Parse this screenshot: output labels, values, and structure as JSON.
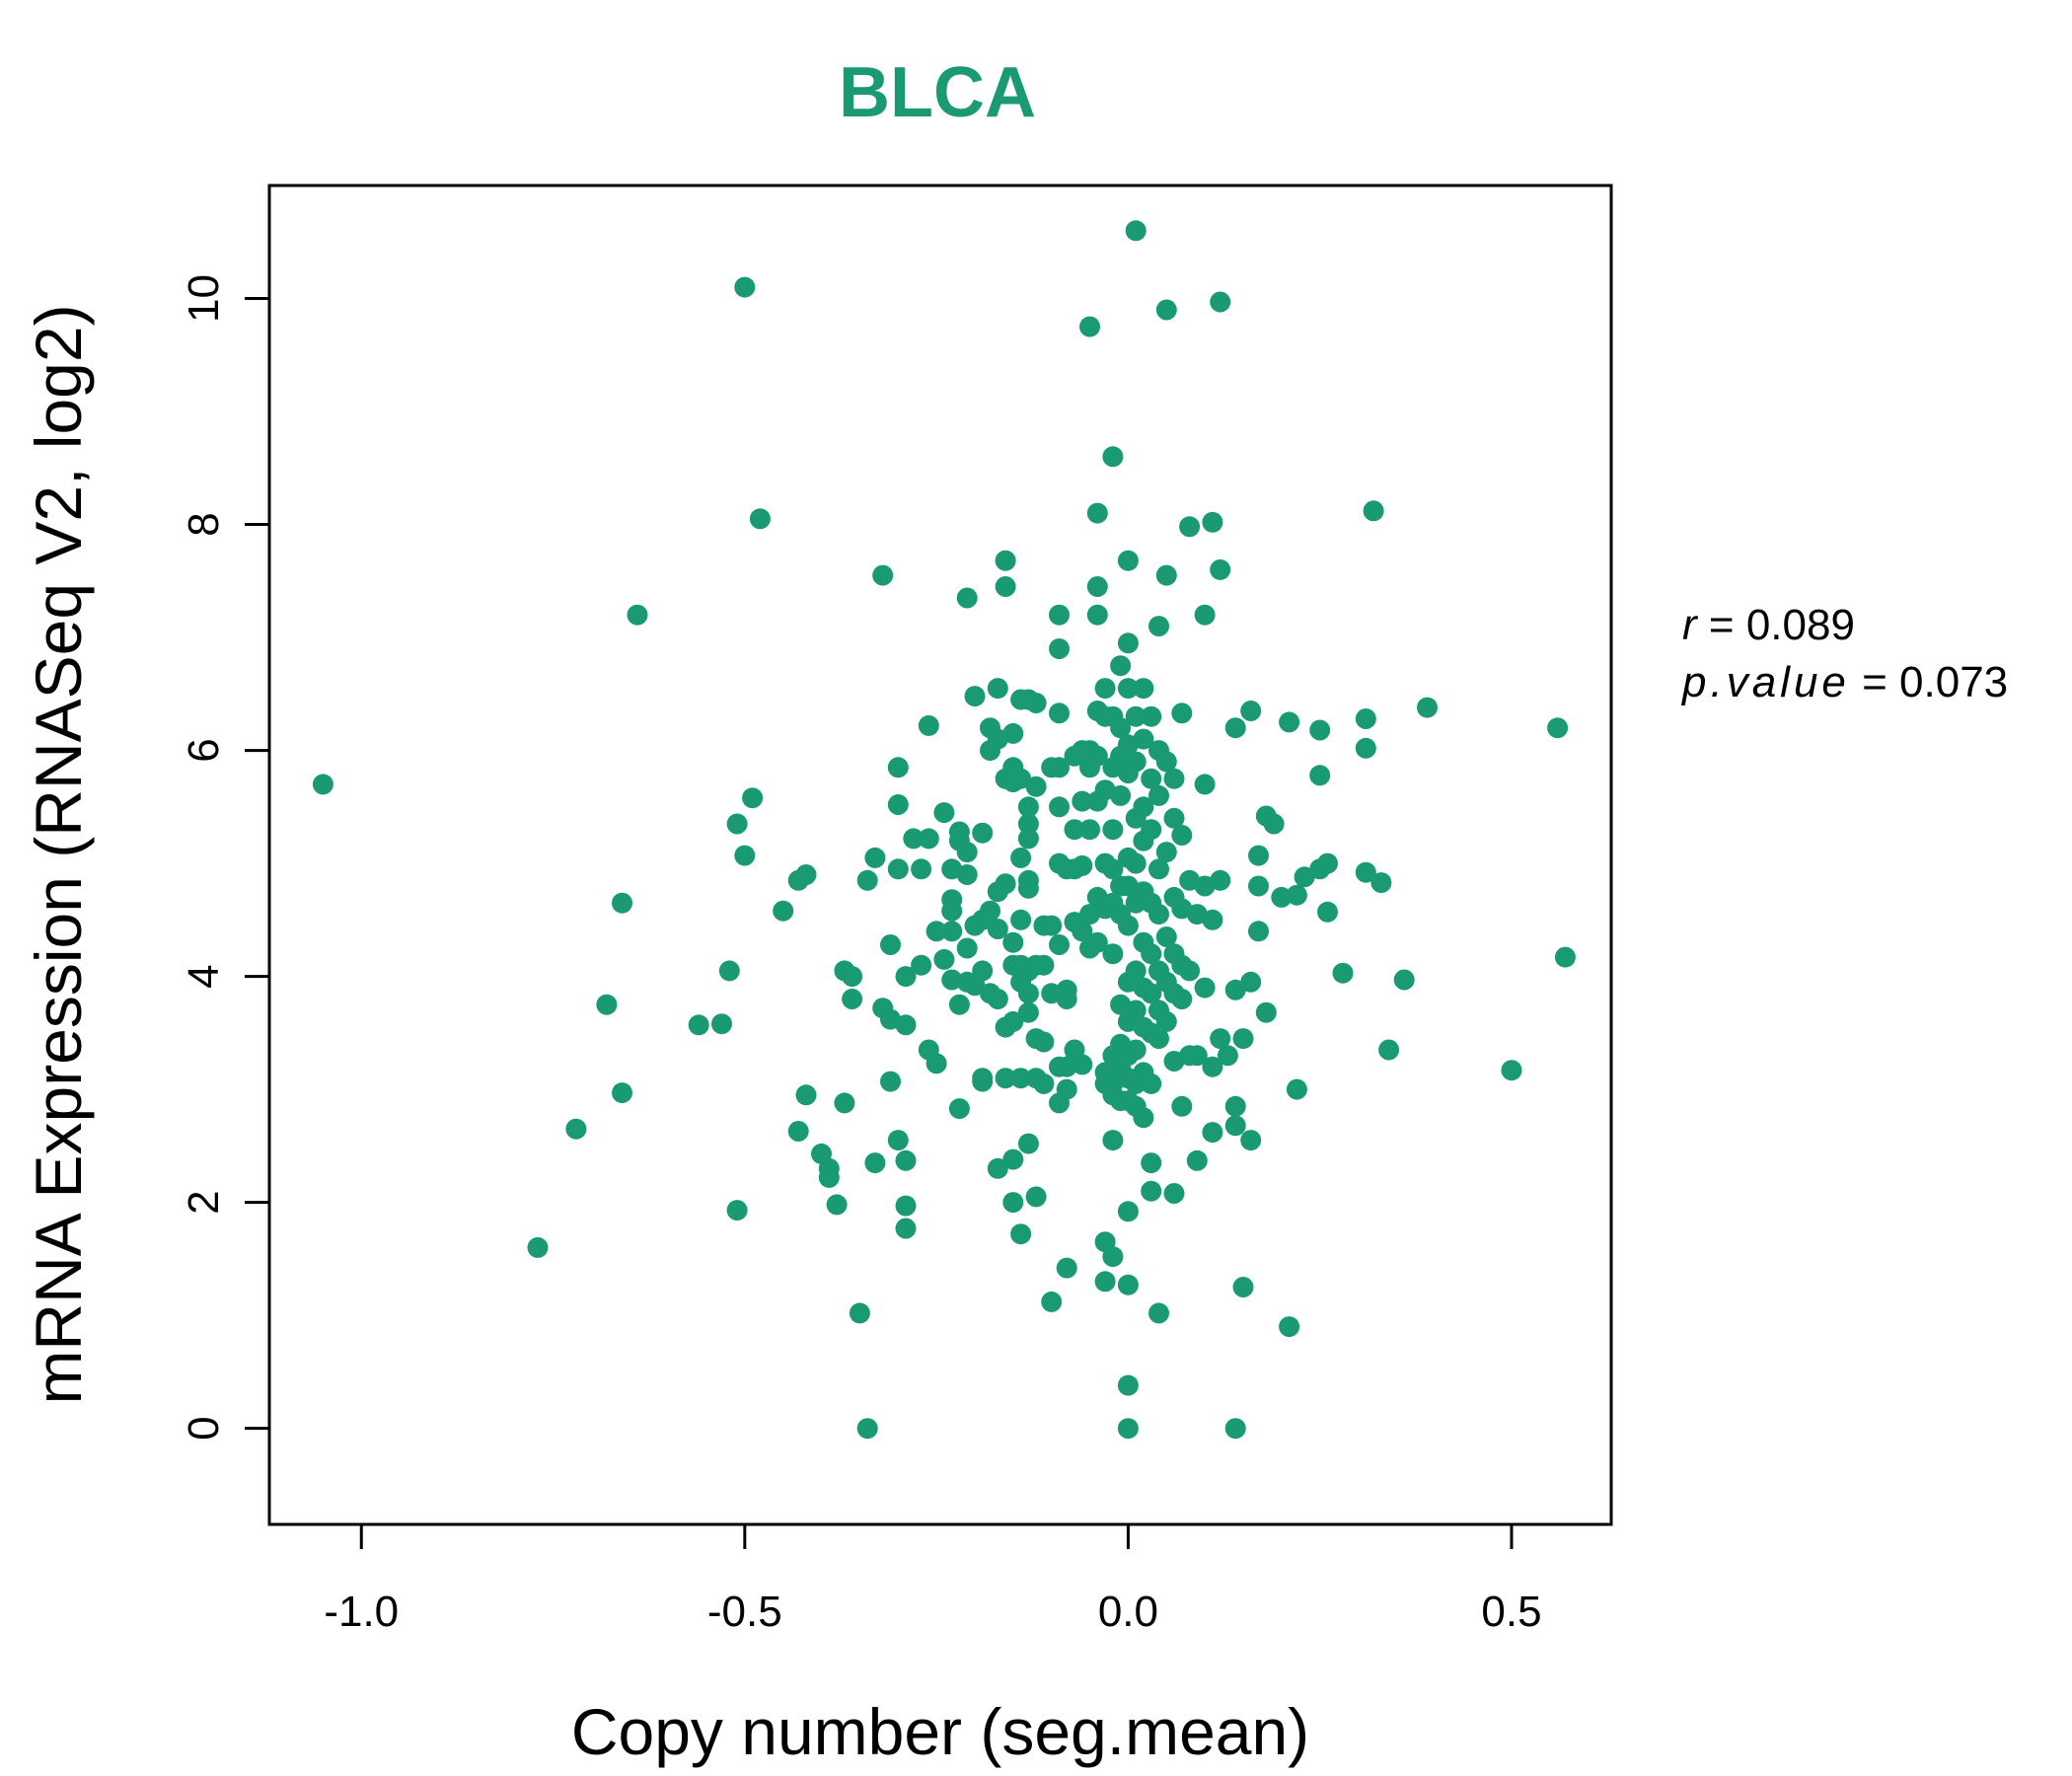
{
  "chart_data": {
    "type": "scatter",
    "title": "BLCA",
    "xlabel": "Copy number (seg.mean)",
    "ylabel": "mRNA Expression (RNASeq V2, log2)",
    "xlim": [
      -1.12,
      0.63
    ],
    "ylim": [
      -0.85,
      11.0
    ],
    "x_ticks": [
      -1.0,
      -0.5,
      0.0,
      0.5
    ],
    "x_tick_labels": [
      "-1.0",
      "-0.5",
      "0.0",
      "0.5"
    ],
    "y_ticks": [
      0,
      2,
      4,
      6,
      8,
      10
    ],
    "y_tick_labels": [
      "0",
      "2",
      "4",
      "6",
      "8",
      "10"
    ],
    "grid": false,
    "point_color": "#1a9a72",
    "stats": {
      "r_label": "r",
      "r_value": "0.089",
      "p_label": "p.value",
      "p_value": "0.073"
    },
    "points": [
      [
        -1.05,
        5.7
      ],
      [
        -0.77,
        1.6
      ],
      [
        -0.72,
        2.65
      ],
      [
        -0.68,
        3.75
      ],
      [
        -0.66,
        2.97
      ],
      [
        -0.66,
        4.65
      ],
      [
        -0.64,
        7.2
      ],
      [
        -0.56,
        3.57
      ],
      [
        -0.53,
        3.58
      ],
      [
        -0.52,
        4.05
      ],
      [
        -0.51,
        5.35
      ],
      [
        -0.51,
        1.93
      ],
      [
        -0.5,
        5.07
      ],
      [
        -0.49,
        5.58
      ],
      [
        -0.5,
        10.1
      ],
      [
        -0.48,
        8.05
      ],
      [
        -0.45,
        4.58
      ],
      [
        -0.43,
        4.85
      ],
      [
        -0.42,
        4.9
      ],
      [
        -0.43,
        2.63
      ],
      [
        -0.42,
        2.95
      ],
      [
        -0.4,
        2.43
      ],
      [
        -0.39,
        2.3
      ],
      [
        -0.39,
        2.22
      ],
      [
        -0.38,
        1.98
      ],
      [
        -0.37,
        2.88
      ],
      [
        -0.37,
        4.05
      ],
      [
        -0.36,
        4.0
      ],
      [
        -0.36,
        3.8
      ],
      [
        -0.35,
        1.02
      ],
      [
        -0.34,
        4.85
      ],
      [
        -0.34,
        0.0
      ],
      [
        -0.33,
        5.05
      ],
      [
        -0.33,
        2.35
      ],
      [
        -0.32,
        3.72
      ],
      [
        -0.32,
        7.55
      ],
      [
        -0.31,
        3.62
      ],
      [
        -0.31,
        3.07
      ],
      [
        -0.31,
        4.28
      ],
      [
        -0.3,
        5.85
      ],
      [
        -0.3,
        5.52
      ],
      [
        -0.3,
        4.95
      ],
      [
        -0.3,
        2.55
      ],
      [
        -0.29,
        3.57
      ],
      [
        -0.29,
        4.0
      ],
      [
        -0.29,
        1.77
      ],
      [
        -0.29,
        1.97
      ],
      [
        -0.29,
        2.37
      ],
      [
        -0.28,
        5.22
      ],
      [
        -0.27,
        4.1
      ],
      [
        -0.27,
        4.95
      ],
      [
        -0.26,
        6.22
      ],
      [
        -0.26,
        5.22
      ],
      [
        -0.26,
        3.35
      ],
      [
        -0.25,
        3.23
      ],
      [
        -0.25,
        4.4
      ],
      [
        -0.24,
        5.45
      ],
      [
        -0.24,
        4.15
      ],
      [
        -0.23,
        4.95
      ],
      [
        -0.23,
        3.97
      ],
      [
        -0.23,
        4.68
      ],
      [
        -0.23,
        4.58
      ],
      [
        -0.23,
        4.4
      ],
      [
        -0.22,
        3.75
      ],
      [
        -0.22,
        2.83
      ],
      [
        -0.22,
        5.28
      ],
      [
        -0.22,
        5.2
      ],
      [
        -0.21,
        7.35
      ],
      [
        -0.21,
        5.1
      ],
      [
        -0.21,
        4.9
      ],
      [
        -0.21,
        4.25
      ],
      [
        -0.21,
        3.95
      ],
      [
        -0.2,
        6.48
      ],
      [
        -0.2,
        4.45
      ],
      [
        -0.2,
        3.92
      ],
      [
        -0.19,
        5.27
      ],
      [
        -0.19,
        4.5
      ],
      [
        -0.19,
        4.05
      ],
      [
        -0.19,
        3.1
      ],
      [
        -0.19,
        3.07
      ],
      [
        -0.18,
        6.2
      ],
      [
        -0.18,
        6.0
      ],
      [
        -0.18,
        4.58
      ],
      [
        -0.18,
        3.85
      ],
      [
        -0.17,
        6.55
      ],
      [
        -0.17,
        6.1
      ],
      [
        -0.17,
        4.75
      ],
      [
        -0.17,
        4.42
      ],
      [
        -0.17,
        3.8
      ],
      [
        -0.17,
        2.3
      ],
      [
        -0.16,
        7.68
      ],
      [
        -0.16,
        7.45
      ],
      [
        -0.16,
        5.75
      ],
      [
        -0.16,
        4.82
      ],
      [
        -0.16,
        3.55
      ],
      [
        -0.16,
        3.1
      ],
      [
        -0.15,
        6.15
      ],
      [
        -0.15,
        5.85
      ],
      [
        -0.15,
        5.72
      ],
      [
        -0.15,
        4.3
      ],
      [
        -0.15,
        4.1
      ],
      [
        -0.15,
        3.6
      ],
      [
        -0.15,
        2.38
      ],
      [
        -0.15,
        2.0
      ],
      [
        -0.14,
        6.45
      ],
      [
        -0.14,
        5.75
      ],
      [
        -0.14,
        5.05
      ],
      [
        -0.14,
        4.5
      ],
      [
        -0.14,
        4.1
      ],
      [
        -0.14,
        3.95
      ],
      [
        -0.14,
        3.1
      ],
      [
        -0.14,
        1.72
      ],
      [
        -0.13,
        6.45
      ],
      [
        -0.13,
        5.5
      ],
      [
        -0.13,
        5.35
      ],
      [
        -0.13,
        5.22
      ],
      [
        -0.13,
        4.85
      ],
      [
        -0.13,
        4.78
      ],
      [
        -0.13,
        4.05
      ],
      [
        -0.13,
        3.85
      ],
      [
        -0.13,
        3.68
      ],
      [
        -0.13,
        2.52
      ],
      [
        -0.12,
        6.42
      ],
      [
        -0.12,
        5.68
      ],
      [
        -0.12,
        4.1
      ],
      [
        -0.12,
        3.45
      ],
      [
        -0.12,
        3.1
      ],
      [
        -0.12,
        2.05
      ],
      [
        -0.11,
        4.45
      ],
      [
        -0.11,
        4.1
      ],
      [
        -0.11,
        3.42
      ],
      [
        -0.11,
        3.05
      ],
      [
        -0.1,
        5.85
      ],
      [
        -0.1,
        4.45
      ],
      [
        -0.1,
        3.85
      ],
      [
        -0.1,
        1.12
      ],
      [
        -0.09,
        7.2
      ],
      [
        -0.09,
        6.9
      ],
      [
        -0.09,
        6.33
      ],
      [
        -0.09,
        5.85
      ],
      [
        -0.09,
        5.5
      ],
      [
        -0.09,
        5.0
      ],
      [
        -0.09,
        4.28
      ],
      [
        -0.09,
        3.2
      ],
      [
        -0.09,
        2.88
      ],
      [
        -0.08,
        4.95
      ],
      [
        -0.08,
        3.88
      ],
      [
        -0.08,
        3.8
      ],
      [
        -0.08,
        3.2
      ],
      [
        -0.08,
        3.0
      ],
      [
        -0.08,
        1.42
      ],
      [
        -0.07,
        5.95
      ],
      [
        -0.07,
        5.3
      ],
      [
        -0.07,
        4.95
      ],
      [
        -0.07,
        4.48
      ],
      [
        -0.07,
        3.35
      ],
      [
        -0.07,
        3.25
      ],
      [
        -0.06,
        6.0
      ],
      [
        -0.06,
        5.55
      ],
      [
        -0.06,
        4.98
      ],
      [
        -0.06,
        4.4
      ],
      [
        -0.06,
        3.22
      ],
      [
        -0.05,
        6.0
      ],
      [
        -0.05,
        5.85
      ],
      [
        -0.05,
        5.3
      ],
      [
        -0.05,
        4.55
      ],
      [
        -0.05,
        4.25
      ],
      [
        -0.05,
        9.75
      ],
      [
        -0.04,
        8.1
      ],
      [
        -0.04,
        7.45
      ],
      [
        -0.04,
        7.2
      ],
      [
        -0.04,
        6.35
      ],
      [
        -0.04,
        5.95
      ],
      [
        -0.04,
        5.55
      ],
      [
        -0.04,
        4.7
      ],
      [
        -0.04,
        4.3
      ],
      [
        -0.03,
        6.55
      ],
      [
        -0.03,
        6.3
      ],
      [
        -0.03,
        5.65
      ],
      [
        -0.03,
        5.0
      ],
      [
        -0.03,
        4.6
      ],
      [
        -0.03,
        3.15
      ],
      [
        -0.03,
        3.05
      ],
      [
        -0.03,
        1.65
      ],
      [
        -0.03,
        1.3
      ],
      [
        -0.02,
        8.6
      ],
      [
        -0.02,
        6.3
      ],
      [
        -0.02,
        5.85
      ],
      [
        -0.02,
        5.3
      ],
      [
        -0.02,
        4.95
      ],
      [
        -0.02,
        4.65
      ],
      [
        -0.02,
        4.2
      ],
      [
        -0.02,
        3.3
      ],
      [
        -0.02,
        3.05
      ],
      [
        -0.02,
        2.95
      ],
      [
        -0.02,
        2.55
      ],
      [
        -0.02,
        1.52
      ],
      [
        -0.01,
        6.75
      ],
      [
        -0.01,
        6.2
      ],
      [
        -0.01,
        5.95
      ],
      [
        -0.01,
        5.6
      ],
      [
        -0.01,
        4.8
      ],
      [
        -0.01,
        4.55
      ],
      [
        -0.01,
        3.75
      ],
      [
        -0.01,
        3.4
      ],
      [
        -0.01,
        3.2
      ],
      [
        -0.01,
        2.9
      ],
      [
        0.0,
        7.68
      ],
      [
        0.0,
        6.95
      ],
      [
        0.0,
        6.55
      ],
      [
        0.0,
        6.05
      ],
      [
        0.0,
        5.8
      ],
      [
        0.0,
        5.05
      ],
      [
        0.0,
        4.8
      ],
      [
        0.0,
        4.45
      ],
      [
        0.0,
        3.95
      ],
      [
        0.0,
        3.6
      ],
      [
        0.0,
        3.3
      ],
      [
        0.0,
        3.1
      ],
      [
        0.0,
        2.9
      ],
      [
        0.0,
        1.92
      ],
      [
        0.0,
        1.27
      ],
      [
        0.0,
        0.38
      ],
      [
        0.0,
        0.0
      ],
      [
        0.01,
        10.6
      ],
      [
        0.01,
        6.3
      ],
      [
        0.01,
        5.9
      ],
      [
        0.01,
        5.4
      ],
      [
        0.01,
        5.0
      ],
      [
        0.01,
        4.65
      ],
      [
        0.01,
        4.05
      ],
      [
        0.01,
        3.7
      ],
      [
        0.01,
        3.35
      ],
      [
        0.01,
        3.05
      ],
      [
        0.01,
        2.85
      ],
      [
        0.02,
        6.1
      ],
      [
        0.02,
        5.5
      ],
      [
        0.02,
        5.2
      ],
      [
        0.02,
        4.75
      ],
      [
        0.02,
        4.3
      ],
      [
        0.02,
        3.9
      ],
      [
        0.02,
        3.55
      ],
      [
        0.02,
        3.15
      ],
      [
        0.02,
        2.75
      ],
      [
        0.02,
        6.55
      ],
      [
        0.03,
        6.3
      ],
      [
        0.03,
        5.75
      ],
      [
        0.03,
        5.3
      ],
      [
        0.03,
        4.65
      ],
      [
        0.03,
        4.2
      ],
      [
        0.03,
        3.85
      ],
      [
        0.03,
        3.5
      ],
      [
        0.03,
        3.05
      ],
      [
        0.03,
        2.35
      ],
      [
        0.03,
        2.1
      ],
      [
        0.04,
        7.1
      ],
      [
        0.04,
        6.0
      ],
      [
        0.04,
        5.6
      ],
      [
        0.04,
        4.95
      ],
      [
        0.04,
        4.55
      ],
      [
        0.04,
        4.05
      ],
      [
        0.04,
        3.7
      ],
      [
        0.04,
        3.45
      ],
      [
        0.04,
        1.02
      ],
      [
        0.05,
        9.9
      ],
      [
        0.05,
        7.55
      ],
      [
        0.05,
        5.9
      ],
      [
        0.05,
        5.1
      ],
      [
        0.05,
        4.35
      ],
      [
        0.05,
        3.95
      ],
      [
        0.05,
        3.6
      ],
      [
        0.06,
        5.75
      ],
      [
        0.06,
        5.4
      ],
      [
        0.06,
        4.7
      ],
      [
        0.06,
        4.2
      ],
      [
        0.06,
        3.85
      ],
      [
        0.06,
        3.25
      ],
      [
        0.06,
        2.08
      ],
      [
        0.07,
        6.33
      ],
      [
        0.07,
        5.25
      ],
      [
        0.07,
        4.6
      ],
      [
        0.07,
        4.1
      ],
      [
        0.07,
        3.8
      ],
      [
        0.07,
        2.85
      ],
      [
        0.08,
        7.98
      ],
      [
        0.08,
        4.85
      ],
      [
        0.08,
        4.05
      ],
      [
        0.08,
        3.3
      ],
      [
        0.09,
        4.55
      ],
      [
        0.09,
        3.3
      ],
      [
        0.09,
        2.37
      ],
      [
        0.1,
        7.2
      ],
      [
        0.1,
        5.7
      ],
      [
        0.1,
        4.8
      ],
      [
        0.1,
        3.9
      ],
      [
        0.11,
        8.02
      ],
      [
        0.11,
        4.5
      ],
      [
        0.11,
        3.2
      ],
      [
        0.11,
        2.62
      ],
      [
        0.12,
        9.97
      ],
      [
        0.12,
        7.6
      ],
      [
        0.12,
        4.85
      ],
      [
        0.12,
        3.45
      ],
      [
        0.13,
        3.3
      ],
      [
        0.14,
        6.2
      ],
      [
        0.14,
        3.88
      ],
      [
        0.14,
        2.85
      ],
      [
        0.14,
        2.68
      ],
      [
        0.14,
        0.0
      ],
      [
        0.15,
        3.45
      ],
      [
        0.15,
        1.25
      ],
      [
        0.16,
        6.35
      ],
      [
        0.16,
        3.95
      ],
      [
        0.16,
        2.55
      ],
      [
        0.17,
        4.8
      ],
      [
        0.17,
        4.4
      ],
      [
        0.17,
        5.07
      ],
      [
        0.18,
        3.68
      ],
      [
        0.18,
        5.42
      ],
      [
        0.19,
        5.35
      ],
      [
        0.2,
        4.7
      ],
      [
        0.21,
        6.25
      ],
      [
        0.21,
        0.9
      ],
      [
        0.22,
        4.72
      ],
      [
        0.22,
        3.0
      ],
      [
        0.23,
        4.88
      ],
      [
        0.25,
        6.18
      ],
      [
        0.25,
        5.78
      ],
      [
        0.25,
        4.95
      ],
      [
        0.26,
        5.0
      ],
      [
        0.26,
        4.57
      ],
      [
        0.28,
        4.03
      ],
      [
        0.31,
        6.28
      ],
      [
        0.31,
        6.02
      ],
      [
        0.31,
        4.92
      ],
      [
        0.32,
        8.12
      ],
      [
        0.33,
        4.83
      ],
      [
        0.34,
        3.35
      ],
      [
        0.36,
        3.97
      ],
      [
        0.39,
        6.38
      ],
      [
        0.5,
        3.17
      ],
      [
        0.56,
        6.2
      ],
      [
        0.57,
        4.17
      ]
    ]
  }
}
